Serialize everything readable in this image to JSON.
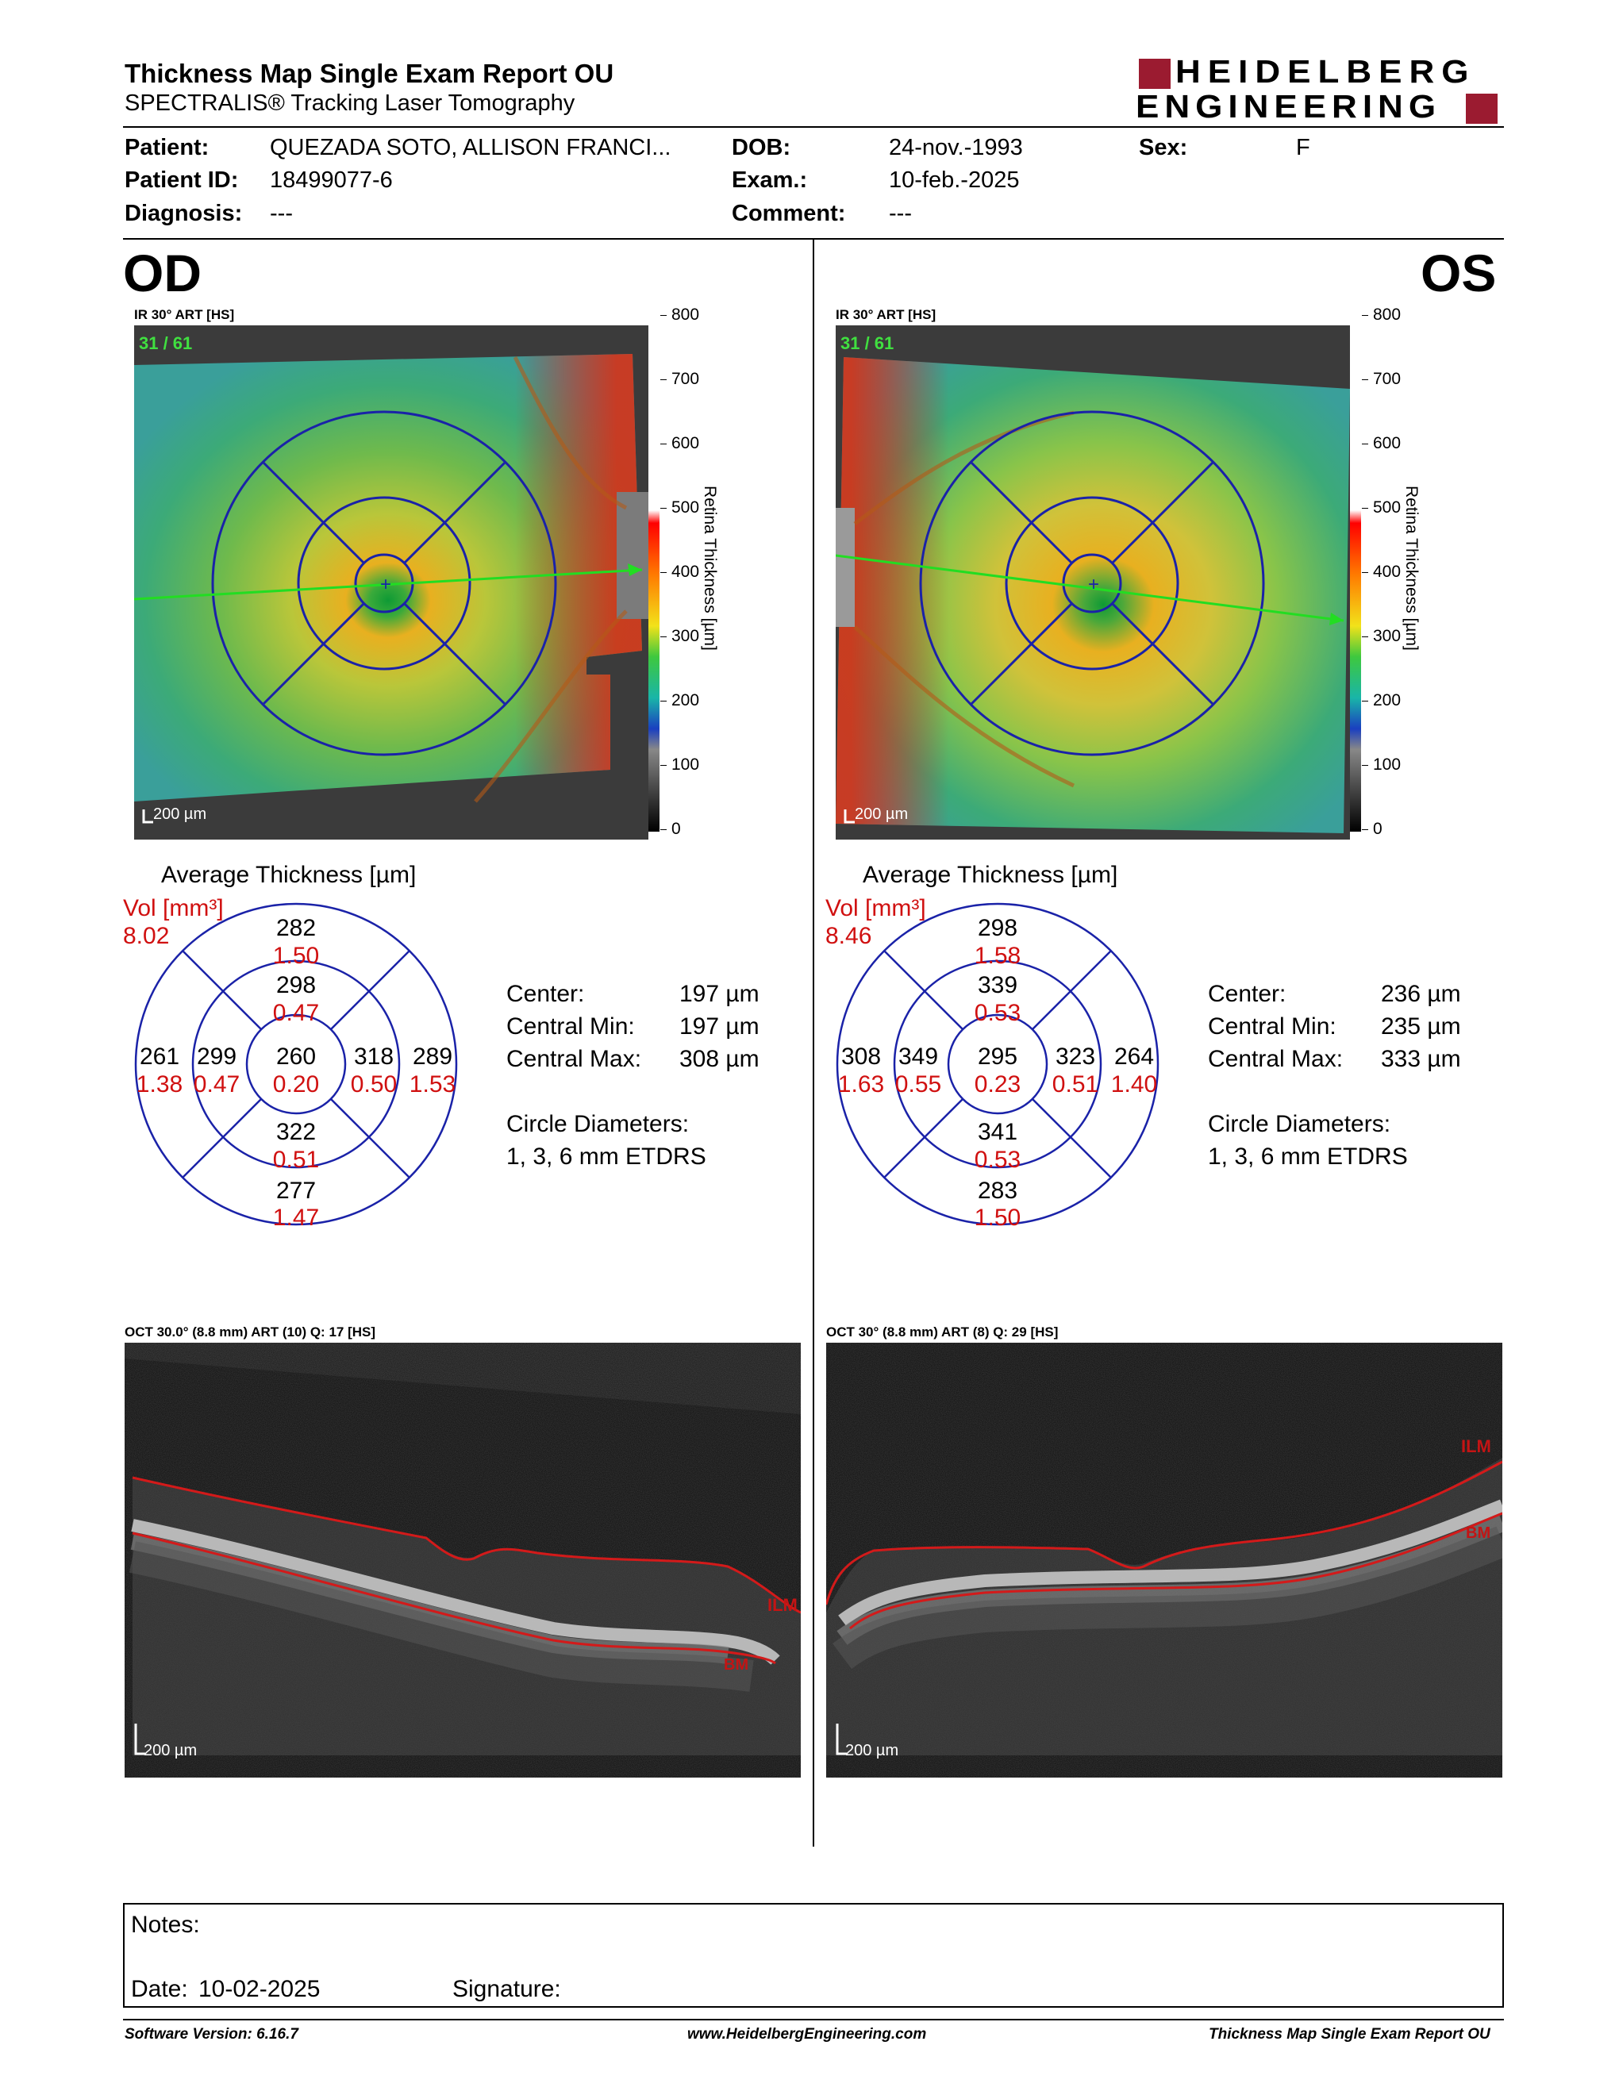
{
  "header": {
    "title": "Thickness Map Single Exam Report OU",
    "subtitle": "SPECTRALIS® Tracking Laser Tomography",
    "logo_line1": "HEIDELBERG",
    "logo_line2": "ENGINEERING"
  },
  "patient": {
    "name_label": "Patient:",
    "name": "QUEZADA SOTO, ALLISON FRANCI...",
    "id_label": "Patient ID:",
    "id": "18499077-6",
    "diagnosis_label": "Diagnosis:",
    "diagnosis": "---",
    "dob_label": "DOB:",
    "dob": "24-nov.-1993",
    "exam_label": "Exam.:",
    "exam": "10-feb.-2025",
    "comment_label": "Comment:",
    "comment": "---",
    "sex_label": "Sex:",
    "sex": "F"
  },
  "colors": {
    "accent_red": "#9b1b30",
    "vol_red": "#d01010",
    "grid_blue": "#1a22a8",
    "ilm_red": "#d31a1a"
  },
  "od": {
    "eye": "OD",
    "ir_label": "IR 30° ART [HS]",
    "frame_counter": "31 / 61",
    "scalebar": "200 µm",
    "avg_title": "Average Thickness [µm]",
    "vol_label": "Vol [mm³]",
    "vol_total": "8.02",
    "etdrs": {
      "outer_sup": "282",
      "outer_sup_v": "1.50",
      "inner_sup": "298",
      "inner_sup_v": "0.47",
      "outer_temp": "261",
      "outer_temp_v": "1.38",
      "inner_temp": "299",
      "inner_temp_v": "0.47",
      "center": "260",
      "center_v": "0.20",
      "inner_nas": "318",
      "inner_nas_v": "0.50",
      "outer_nas": "289",
      "outer_nas_v": "1.53",
      "inner_inf": "322",
      "inner_inf_v": "0.51",
      "outer_inf": "277",
      "outer_inf_v": "1.47"
    },
    "center_label": "Center:",
    "center_value": "197 µm",
    "cmin_label": "Central Min:",
    "cmin_value": "197 µm",
    "cmax_label": "Central Max:",
    "cmax_value": "308 µm",
    "diam_label": "Circle Diameters:",
    "diam_value": "1, 3, 6 mm ETDRS",
    "oct_label": "OCT 30.0° (8.8 mm) ART (10) Q: 17 [HS]",
    "oct_scalebar": "200 µm",
    "ilm": "ILM",
    "bm": "BM"
  },
  "os": {
    "eye": "OS",
    "ir_label": "IR 30° ART [HS]",
    "frame_counter": "31 / 61",
    "scalebar": "200 µm",
    "avg_title": "Average Thickness [µm]",
    "vol_label": "Vol [mm³]",
    "vol_total": "8.46",
    "etdrs": {
      "outer_sup": "298",
      "outer_sup_v": "1.58",
      "inner_sup": "339",
      "inner_sup_v": "0.53",
      "outer_temp": "308",
      "outer_temp_v": "1.63",
      "inner_temp": "349",
      "inner_temp_v": "0.55",
      "center": "295",
      "center_v": "0.23",
      "inner_nas": "323",
      "inner_nas_v": "0.51",
      "outer_nas": "264",
      "outer_nas_v": "1.40",
      "inner_inf": "341",
      "inner_inf_v": "0.53",
      "outer_inf": "283",
      "outer_inf_v": "1.50"
    },
    "center_label": "Center:",
    "center_value": "236 µm",
    "cmin_label": "Central Min:",
    "cmin_value": "235 µm",
    "cmax_label": "Central Max:",
    "cmax_value": "333 µm",
    "diam_label": "Circle Diameters:",
    "diam_value": "1, 3, 6 mm ETDRS",
    "oct_label": "OCT 30° (8.8 mm) ART (8) Q: 29 [HS]",
    "oct_scalebar": "200 µm",
    "ilm": "ILM",
    "bm": "BM"
  },
  "scale": {
    "ticks": [
      "800",
      "700",
      "600",
      "500",
      "400",
      "300",
      "200",
      "100",
      "0"
    ],
    "title": "Retina  Thickness [µm]"
  },
  "notes": {
    "notes_label": "Notes:",
    "date_label": "Date:",
    "date": "10-02-2025",
    "signature_label": "Signature:"
  },
  "footer": {
    "software": "Software Version: 6.16.7",
    "url": "www.HeidelbergEngineering.com",
    "report": "Thickness Map Single Exam Report OU"
  }
}
